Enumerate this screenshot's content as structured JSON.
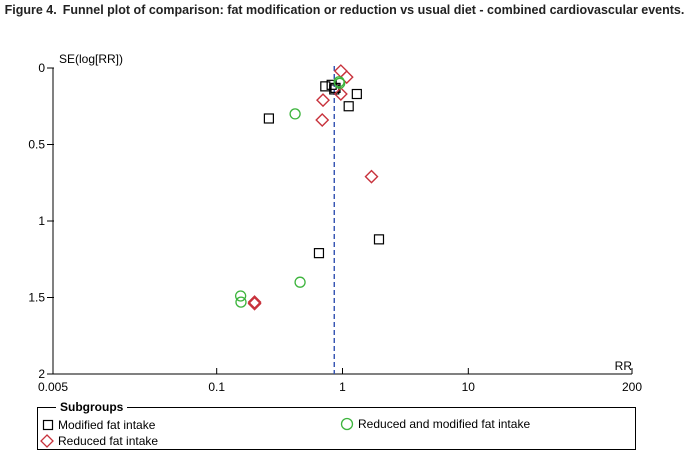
{
  "title_prefix": "Figure 4.",
  "title_text": "Funnel plot of comparison: fat modification or reduction vs usual diet - combined cardiovascular events.",
  "chart_data": {
    "type": "scatter",
    "title": "Funnel plot of comparison: fat modification or reduction vs usual diet - combined cardiovascular events.",
    "xlabel": "RR",
    "ylabel": "SE(log[RR])",
    "x_scale": "log",
    "xlim": [
      0.005,
      200
    ],
    "ylim": [
      0,
      2
    ],
    "y_inverted": true,
    "x_ticks": [
      {
        "value": 0.005,
        "label": "0.005"
      },
      {
        "value": 0.1,
        "label": "0.1"
      },
      {
        "value": 1,
        "label": "1"
      },
      {
        "value": 10,
        "label": "10"
      },
      {
        "value": 200,
        "label": "200"
      }
    ],
    "y_ticks": [
      {
        "value": 0,
        "label": "0"
      },
      {
        "value": 0.5,
        "label": "0.5"
      },
      {
        "value": 1,
        "label": "1"
      },
      {
        "value": 1.5,
        "label": "1.5"
      },
      {
        "value": 2,
        "label": "2"
      }
    ],
    "reference_line": {
      "x": 0.86,
      "style": "dashed",
      "color": "#3050b0"
    },
    "legend_title": "Subgroups",
    "series": [
      {
        "name": "Modified fat intake",
        "marker": "square",
        "color": "#000000",
        "points": [
          {
            "x": 0.26,
            "y": 0.33
          },
          {
            "x": 0.73,
            "y": 0.12
          },
          {
            "x": 0.82,
            "y": 0.11
          },
          {
            "x": 0.86,
            "y": 0.14
          },
          {
            "x": 0.88,
            "y": 0.13
          },
          {
            "x": 1.12,
            "y": 0.25
          },
          {
            "x": 1.3,
            "y": 0.17
          },
          {
            "x": 0.65,
            "y": 1.21
          },
          {
            "x": 1.95,
            "y": 1.12
          }
        ]
      },
      {
        "name": "Reduced fat intake",
        "marker": "diamond",
        "color": "#c8323c",
        "points": [
          {
            "x": 0.97,
            "y": 0.02
          },
          {
            "x": 1.08,
            "y": 0.06
          },
          {
            "x": 0.97,
            "y": 0.17
          },
          {
            "x": 0.7,
            "y": 0.21
          },
          {
            "x": 0.69,
            "y": 0.34
          },
          {
            "x": 1.7,
            "y": 0.71
          },
          {
            "x": 0.2,
            "y": 1.53
          },
          {
            "x": 0.2,
            "y": 1.54
          }
        ]
      },
      {
        "name": "Reduced and modified fat intake",
        "marker": "circle",
        "color": "#3cb43c",
        "points": [
          {
            "x": 0.94,
            "y": 0.09
          },
          {
            "x": 0.95,
            "y": 0.1
          },
          {
            "x": 0.42,
            "y": 0.3
          },
          {
            "x": 0.46,
            "y": 1.4
          },
          {
            "x": 0.155,
            "y": 1.49
          },
          {
            "x": 0.156,
            "y": 1.53
          }
        ]
      }
    ]
  }
}
